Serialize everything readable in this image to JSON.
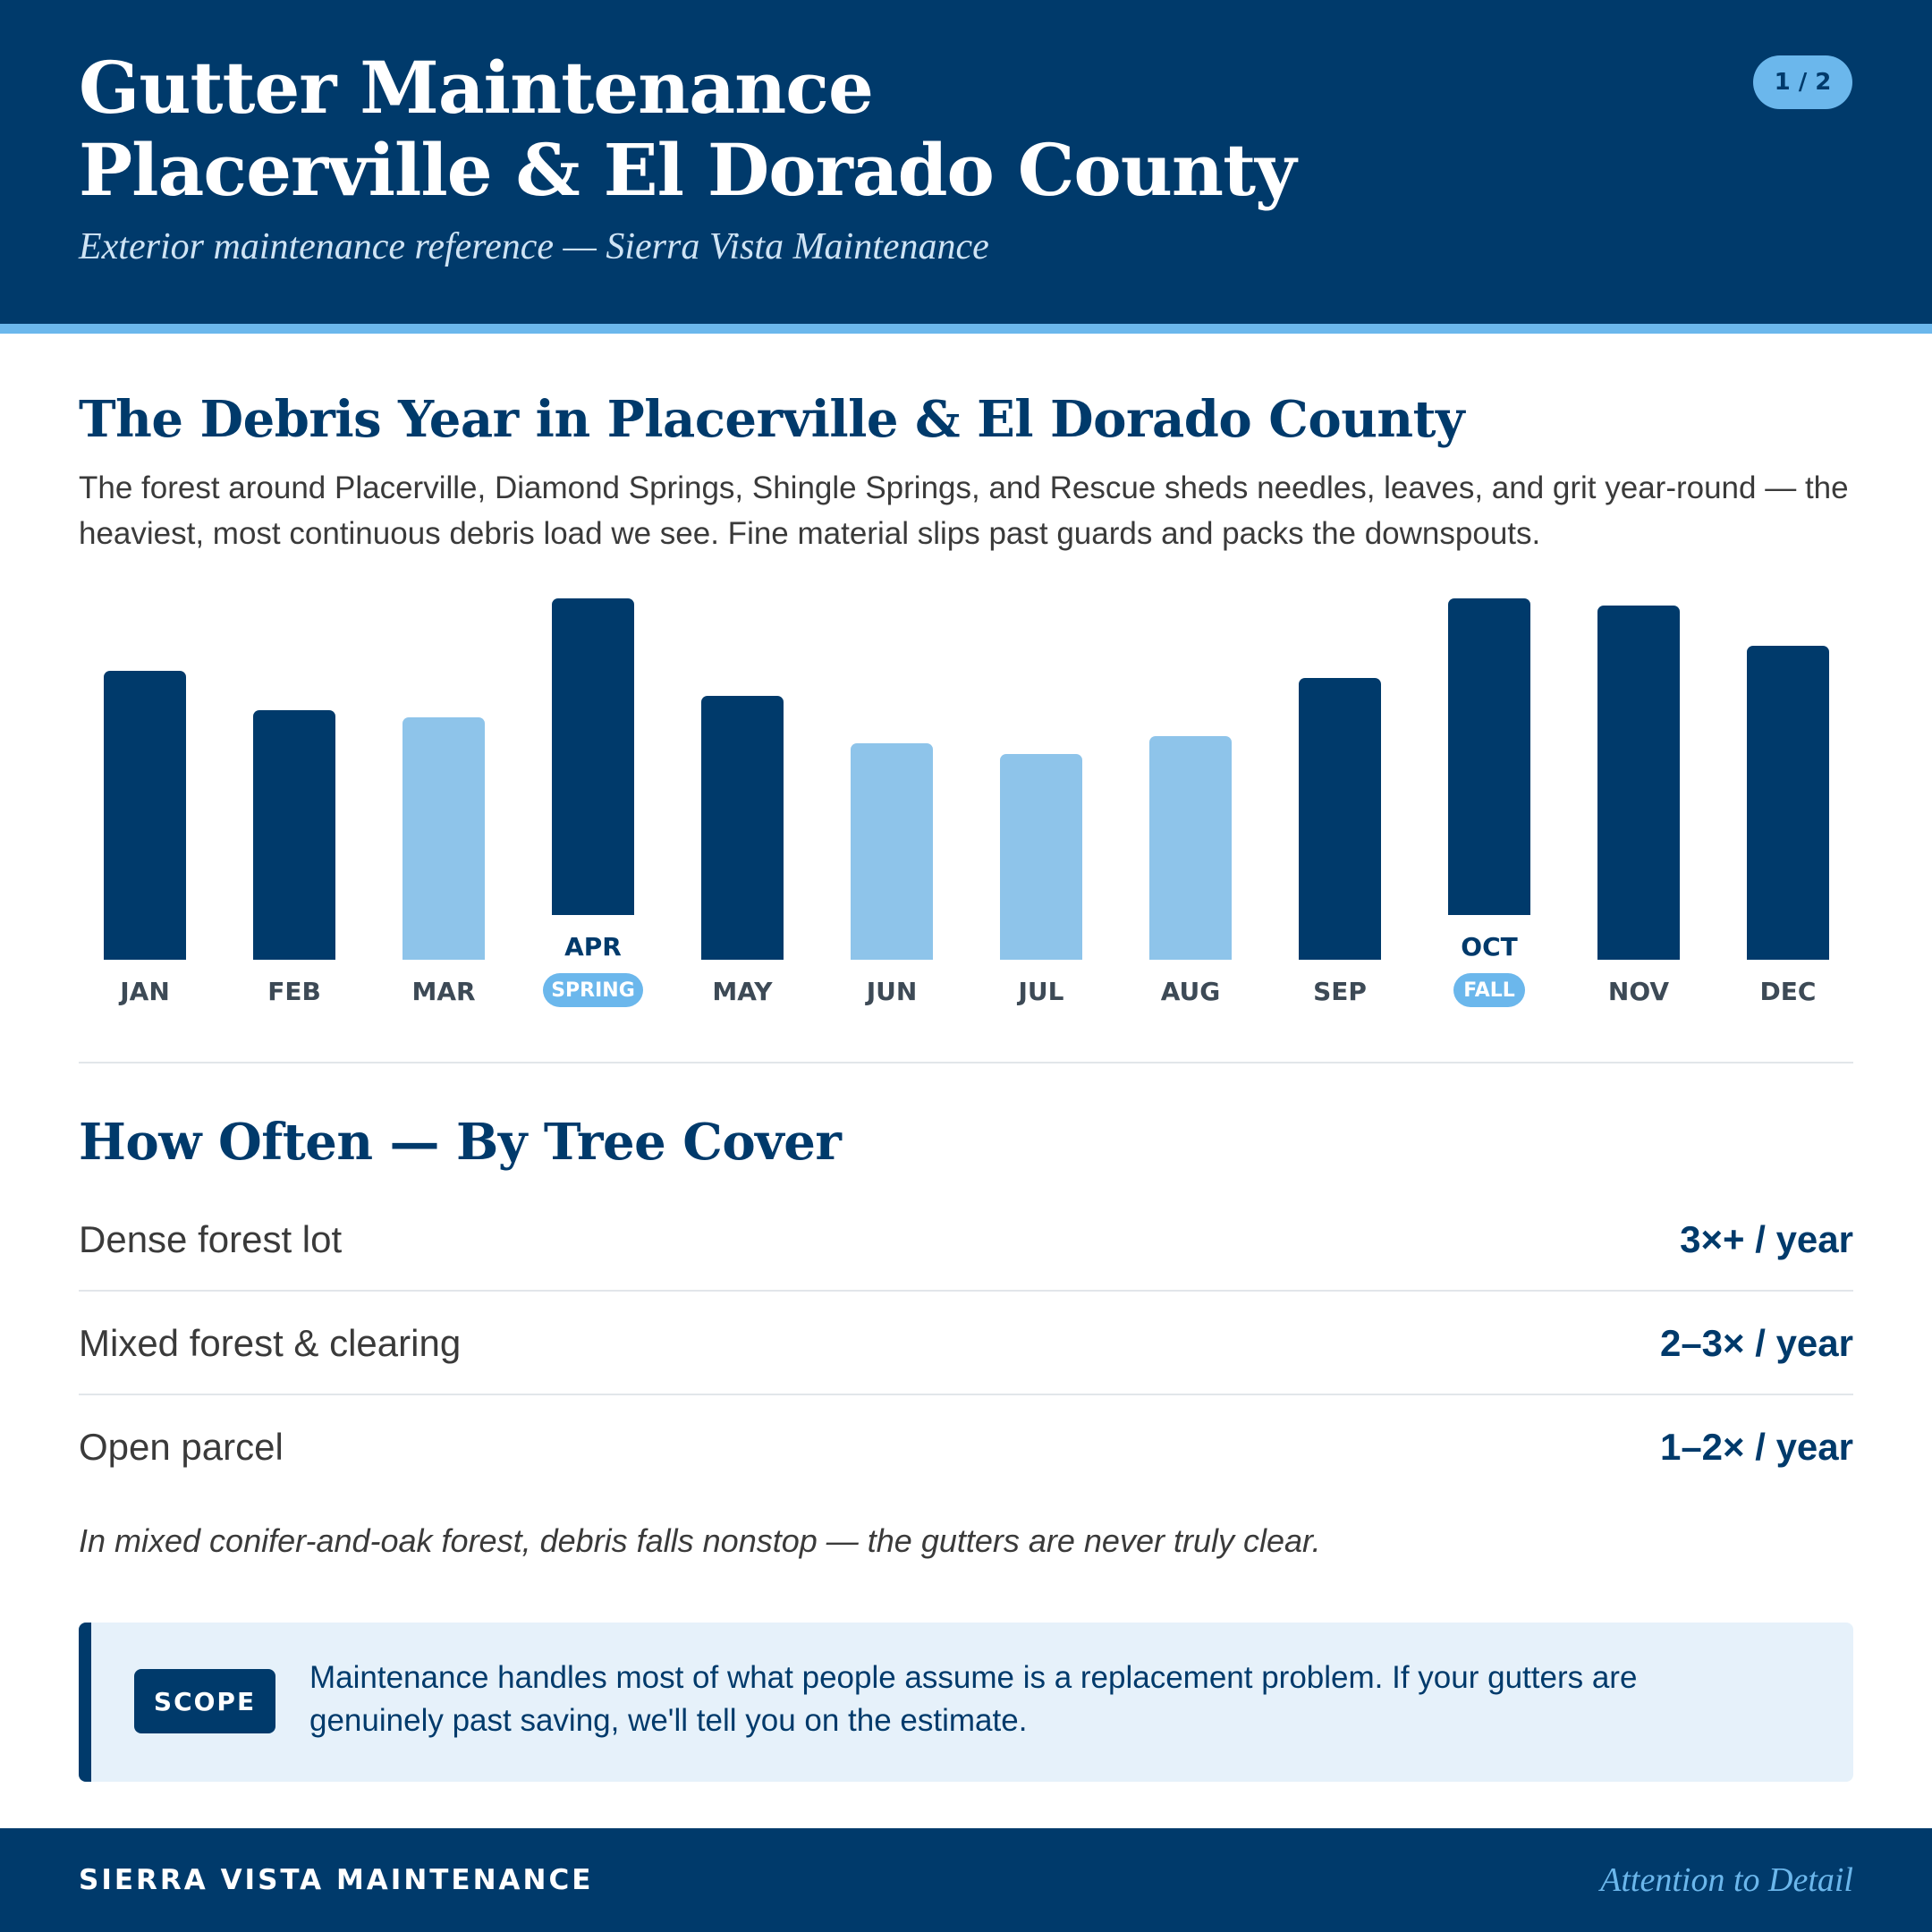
{
  "header": {
    "title_line1": "Gutter Maintenance",
    "title_line2": "Placerville & El Dorado County",
    "subtitle": "Exterior maintenance reference — Sierra Vista Maintenance",
    "page_indicator": "1 / 2"
  },
  "debris_section": {
    "title": "The Debris Year in Placerville & El Dorado County",
    "intro": "The forest around Placerville, Diamond Springs, Shingle Springs, and Rescue sheds needles, leaves, and grit year-round — the heaviest, most continuous debris load we see. Fine material slips past guards and packs the downspouts."
  },
  "chart_data": {
    "type": "bar",
    "categories": [
      "JAN",
      "FEB",
      "MAR",
      "APR",
      "MAY",
      "JUN",
      "JUL",
      "AUG",
      "SEP",
      "OCT",
      "NOV",
      "DEC"
    ],
    "values": [
      80,
      69,
      67,
      100,
      73,
      60,
      57,
      62,
      78,
      100,
      98,
      87
    ],
    "emphasis": [
      "dark",
      "dark",
      "light",
      "dark",
      "dark",
      "light",
      "light",
      "light",
      "dark",
      "dark",
      "dark",
      "dark"
    ],
    "peak_labels": {
      "APR": "SPRING",
      "OCT": "FALL"
    },
    "colors": {
      "dark": "#003a6b",
      "light": "#8ec4ea",
      "pill": "#6bb7ec"
    },
    "ylim": [
      0,
      100
    ],
    "grid": false
  },
  "frequency_section": {
    "title": "How Often — By Tree Cover",
    "rows": [
      {
        "label": "Dense forest lot",
        "value": "3×+ / year"
      },
      {
        "label": "Mixed forest & clearing",
        "value": "2–3× / year"
      },
      {
        "label": "Open parcel",
        "value": "1–2× / year"
      }
    ],
    "note": "In mixed conifer-and-oak forest, debris falls nonstop — the gutters are never truly clear."
  },
  "scope": {
    "tag": "SCOPE",
    "text": "Maintenance handles most of what people assume is a replacement problem. If your gutters are genuinely past saving, we'll tell you on the estimate."
  },
  "footer": {
    "brand": "SIERRA VISTA MAINTENANCE",
    "tagline": "Attention to Detail"
  },
  "colors": {
    "navy": "#003a6b",
    "accent_blue": "#6bb7ec",
    "light_blue": "#8ec4ea",
    "scope_background": "#e6f1fa"
  }
}
